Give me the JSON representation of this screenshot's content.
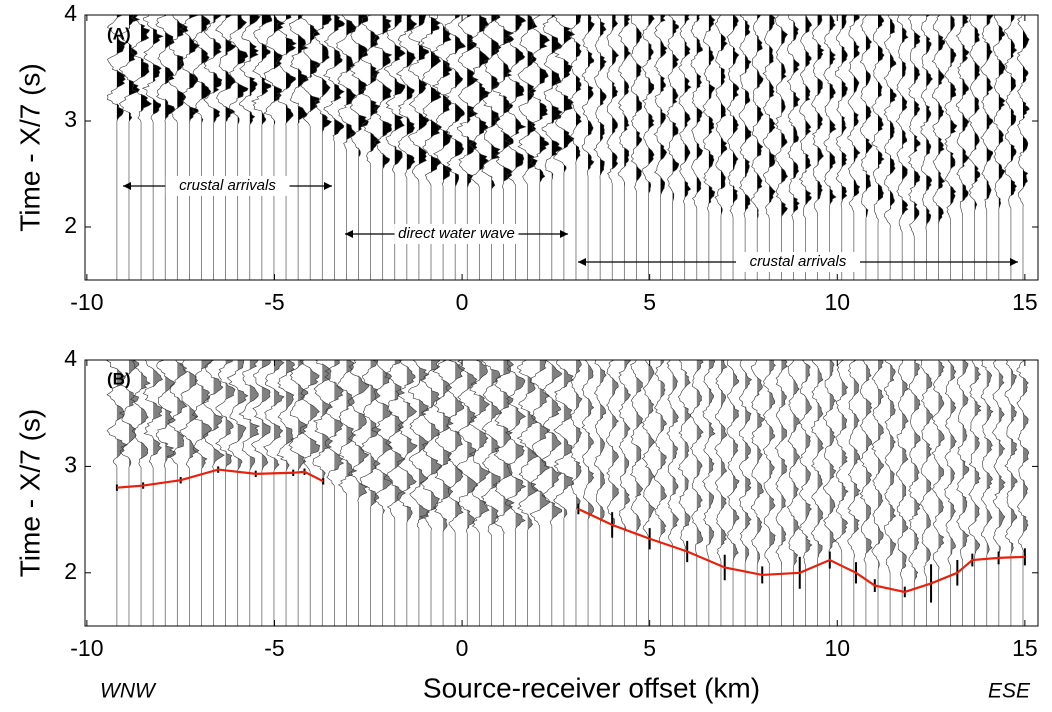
{
  "chart_data": [
    {
      "type": "seismic",
      "panel_label": "(A)",
      "y_label": "Time - X/7 (s)",
      "xlim": [
        -10.05,
        15.35
      ],
      "ylim": [
        1.5,
        4
      ],
      "xticks": [
        -10,
        -5,
        0,
        5,
        10,
        15
      ],
      "yticks": [
        2,
        3,
        4
      ],
      "annotations": [
        "crustal arrivals",
        "direct water wave",
        "crustal arrivals"
      ],
      "trace_color": "#000000"
    },
    {
      "type": "line",
      "panel_label": "(B)",
      "y_label": "Time - X/7 (s)",
      "x_label": "Source-receiver offset (km)",
      "x_end_labels": [
        "WNW",
        "ESE"
      ],
      "xlim": [
        -10.05,
        15.35
      ],
      "ylim": [
        1.5,
        4
      ],
      "xticks": [
        -10,
        -5,
        0,
        5,
        10,
        15
      ],
      "yticks": [
        2,
        3,
        4
      ],
      "trace_color": "#808080",
      "color": "#e8200c",
      "error_color": "#000000",
      "x": [
        -9.2,
        -8.5,
        -7.5,
        -6.5,
        -5.5,
        -4.5,
        -4.2,
        -3.7,
        null,
        3.1,
        4,
        5,
        6,
        7,
        8,
        9,
        9.8,
        10.5,
        11,
        11.8,
        12.5,
        13.2,
        13.6,
        14.3,
        15
      ],
      "values": [
        2.8,
        2.82,
        2.87,
        2.97,
        2.93,
        2.94,
        2.95,
        2.86,
        null,
        2.6,
        2.45,
        2.32,
        2.2,
        2.05,
        1.98,
        2.0,
        2.12,
        2.0,
        1.88,
        1.82,
        1.9,
        2.0,
        2.12,
        2.14,
        2.15
      ],
      "errors": [
        0.03,
        0.03,
        0.03,
        0.03,
        0.03,
        0.03,
        0.03,
        0.03,
        null,
        0.05,
        0.12,
        0.1,
        0.1,
        0.12,
        0.08,
        0.15,
        0.08,
        0.1,
        0.06,
        0.05,
        0.18,
        0.12,
        0.06,
        0.06,
        0.08
      ]
    }
  ]
}
